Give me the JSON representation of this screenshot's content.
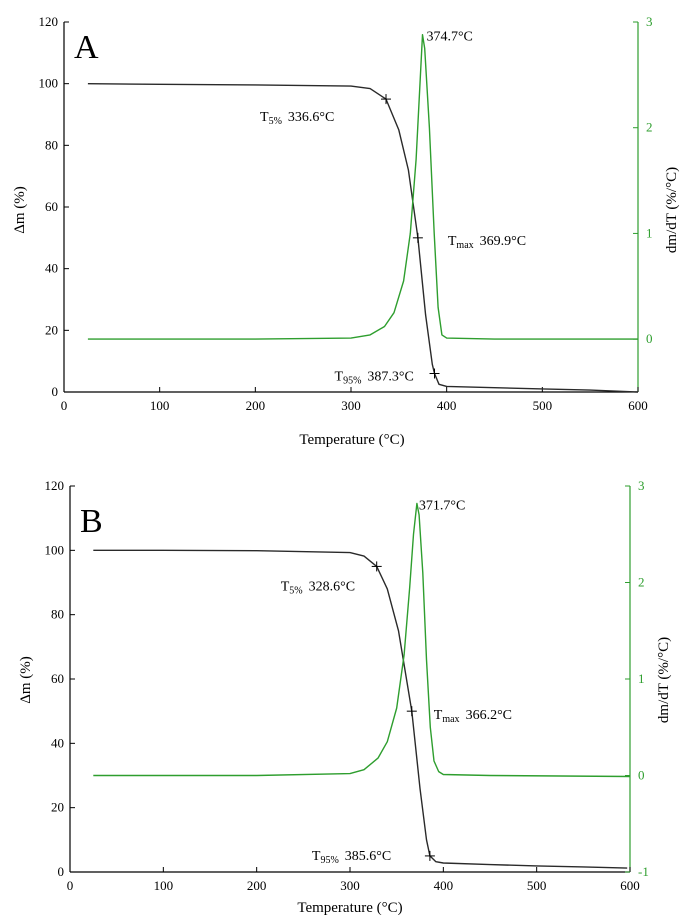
{
  "colors": {
    "mass_curve": "#2a2a2a",
    "dtg_curve": "#2e9e2e",
    "left_axis": "#000000",
    "right_axis": "#2e9e2e",
    "panel_label": "#8b6a2a"
  },
  "chart_data": [
    {
      "type": "line",
      "panel_label": "A",
      "xlabel": "Temperature (°C)",
      "ylabel": "Δm (%)",
      "y2label": "dm/dT (%/°C)",
      "xlim": [
        0,
        600
      ],
      "ylim": [
        0,
        120
      ],
      "y2lim": [
        -0.5,
        3
      ],
      "x_ticks": [
        "0",
        "100",
        "200",
        "300",
        "400",
        "500",
        "600"
      ],
      "y_ticks": [
        "0",
        "20",
        "40",
        "60",
        "80",
        "100",
        "120"
      ],
      "y2_ticks": [
        "0",
        "1",
        "2",
        "3"
      ],
      "grid": false,
      "series": [
        {
          "axis": "left",
          "x": [
            25,
            100,
            200,
            300,
            320,
            336.6,
            350,
            360,
            369.9,
            378,
            385,
            387.3,
            392,
            400,
            450,
            500,
            550,
            600
          ],
          "y": [
            100,
            99.8,
            99.6,
            99.2,
            98.4,
            95,
            85,
            72,
            50,
            25,
            9,
            6,
            2.5,
            1.8,
            1.4,
            1.0,
            0.6,
            0
          ]
        },
        {
          "axis": "right",
          "x": [
            25,
            100,
            200,
            300,
            320,
            335,
            345,
            355,
            362,
            368,
            372,
            374.7,
            377,
            382,
            387,
            391,
            395,
            400,
            450,
            500,
            600
          ],
          "y": [
            0,
            0,
            0,
            0.01,
            0.04,
            0.12,
            0.25,
            0.55,
            1.0,
            1.7,
            2.4,
            2.88,
            2.75,
            2.0,
            1.0,
            0.3,
            0.04,
            0.01,
            0,
            0,
            0
          ]
        }
      ],
      "annotations": [
        {
          "main": "T",
          "sub": "5%",
          "value": "336.6°C",
          "x": 336.6,
          "y": 95
        },
        {
          "main": "T",
          "sub": "max",
          "value": "369.9°C",
          "x": 369.9,
          "y": 50
        },
        {
          "main": "T",
          "sub": "95%",
          "value": "387.3°C",
          "x": 387.3,
          "y": 6
        },
        {
          "main": "",
          "sub": "",
          "value": "374.7°C",
          "x": 374.7,
          "y2": 2.88
        }
      ]
    },
    {
      "type": "line",
      "panel_label": "B",
      "xlabel": "Temperature (°C)",
      "ylabel": "Δm (%)",
      "y2label": "dm/dT (%/°C)",
      "xlim": [
        0,
        600
      ],
      "ylim": [
        0,
        120
      ],
      "y2lim": [
        -1,
        3
      ],
      "x_ticks": [
        "0",
        "100",
        "200",
        "300",
        "400",
        "500",
        "600"
      ],
      "y_ticks": [
        "0",
        "20",
        "40",
        "60",
        "80",
        "100",
        "120"
      ],
      "y2_ticks": [
        "-1",
        "0",
        "1",
        "2",
        "3"
      ],
      "grid": false,
      "series": [
        {
          "axis": "left",
          "x": [
            25,
            100,
            200,
            300,
            315,
            328.6,
            340,
            352,
            366.2,
            375,
            382,
            385.6,
            392,
            400,
            450,
            500,
            550,
            597
          ],
          "y": [
            100,
            100,
            99.9,
            99.3,
            98.2,
            95,
            88,
            75,
            50,
            26,
            10,
            5,
            3.2,
            2.8,
            2.3,
            1.9,
            1.6,
            1.2
          ]
        },
        {
          "axis": "right",
          "x": [
            25,
            100,
            200,
            300,
            315,
            330,
            340,
            350,
            358,
            364,
            368,
            371.7,
            374,
            378,
            382,
            386,
            390,
            395,
            400,
            450,
            600
          ],
          "y": [
            0,
            0,
            0,
            0.02,
            0.06,
            0.18,
            0.35,
            0.7,
            1.25,
            1.95,
            2.5,
            2.82,
            2.7,
            2.1,
            1.2,
            0.5,
            0.15,
            0.04,
            0.01,
            0,
            -0.01
          ]
        }
      ],
      "annotations": [
        {
          "main": "T",
          "sub": "5%",
          "value": "328.6°C",
          "x": 328.6,
          "y": 95
        },
        {
          "main": "T",
          "sub": "max",
          "value": "366.2°C",
          "x": 366.2,
          "y": 50
        },
        {
          "main": "T",
          "sub": "95%",
          "value": "385.6°C",
          "x": 385.6,
          "y": 5
        },
        {
          "main": "",
          "sub": "",
          "value": "371.7°C",
          "x": 371.7,
          "y2": 2.82
        }
      ]
    }
  ]
}
